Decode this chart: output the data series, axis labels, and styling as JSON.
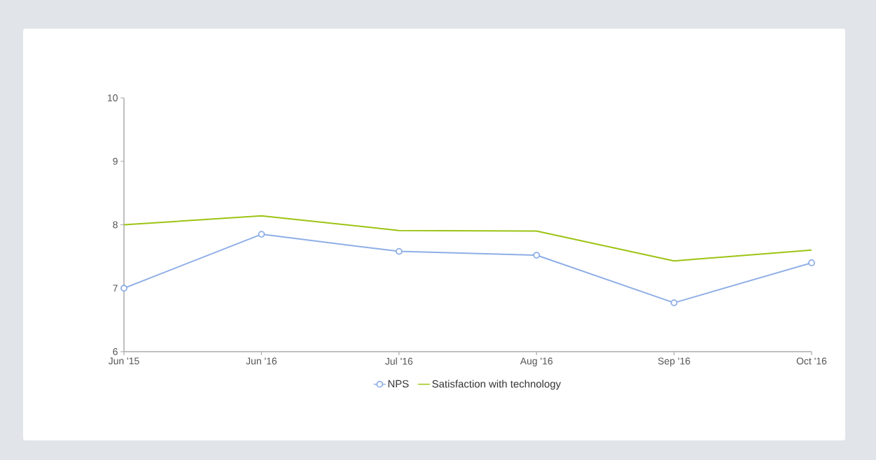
{
  "chart_data": {
    "type": "line",
    "categories": [
      "Jun '15",
      "Jun '16",
      "Jul '16",
      "Aug '16",
      "Sep '16",
      "Oct '16"
    ],
    "series": [
      {
        "name": "NPS",
        "color": "#8eaee6",
        "marker": "circle",
        "values": [
          7.0,
          7.85,
          7.58,
          7.52,
          6.77,
          7.4
        ]
      },
      {
        "name": "Satisfaction with technology",
        "color": "#9cc414",
        "marker": "none",
        "values": [
          8.0,
          8.14,
          7.91,
          7.9,
          7.43,
          7.6
        ]
      }
    ],
    "ylim": [
      6,
      10
    ],
    "yticks": [
      6,
      7,
      8,
      9,
      10
    ],
    "grid": false,
    "legend": "bottom",
    "line_style": "solid"
  }
}
